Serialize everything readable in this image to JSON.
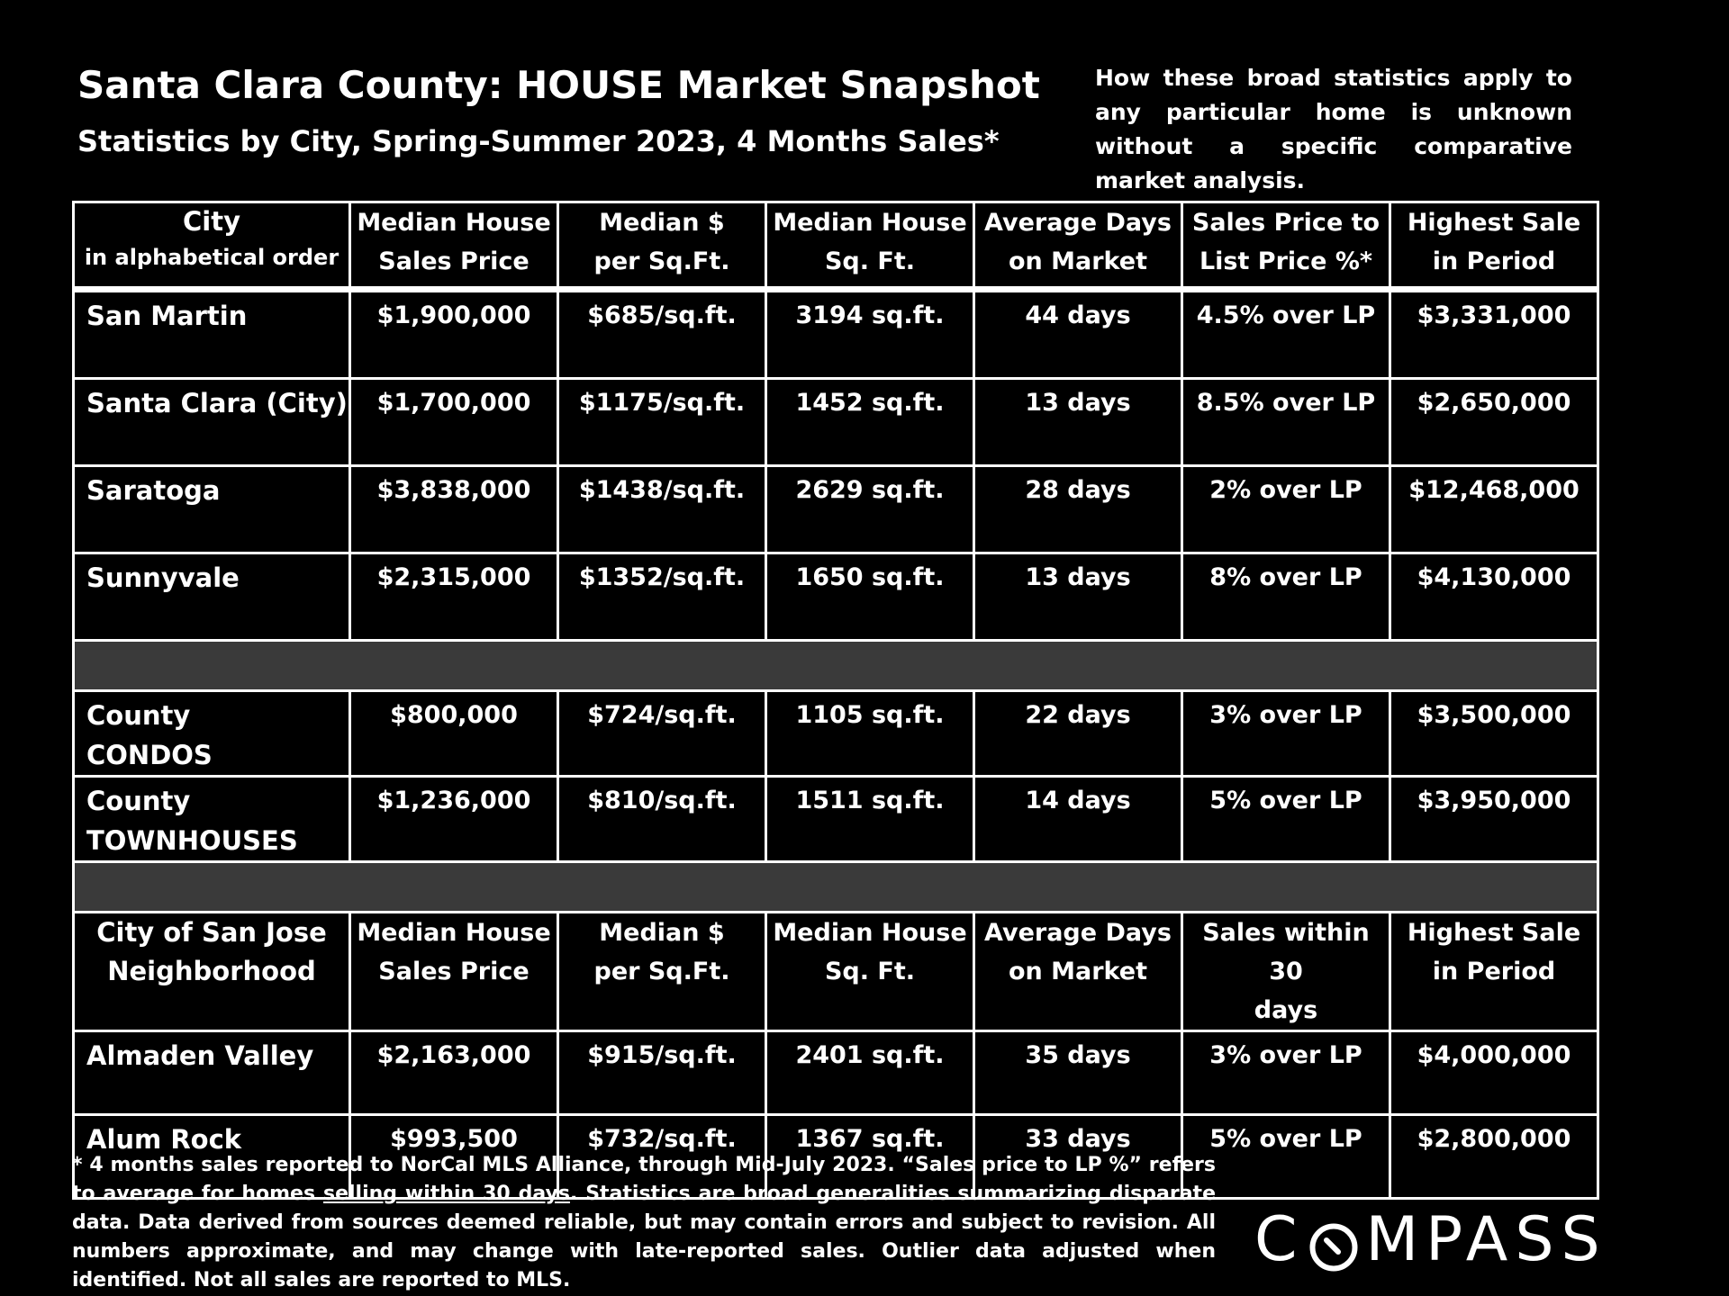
{
  "header": {
    "title": "Santa Clara County: HOUSE Market Snapshot",
    "subtitle": "Statistics by City, Spring-Summer 2023, 4 Months Sales*",
    "disclaimer": "How these broad statistics apply to any particular home is unknown without a specific comparative market analysis."
  },
  "table": {
    "columns": [
      {
        "line1": "City",
        "line2": "in alphabetical order"
      },
      {
        "line1": "Median House",
        "line2": "Sales Price"
      },
      {
        "line1": "Median $",
        "line2": "per Sq.Ft."
      },
      {
        "line1": "Median House",
        "line2": "Sq. Ft."
      },
      {
        "line1": "Average Days",
        "line2": "on Market"
      },
      {
        "line1": "Sales Price to",
        "line2": "List Price %*"
      },
      {
        "line1": "Highest Sale",
        "line2": "in Period"
      }
    ],
    "cities": [
      {
        "name": "San Martin",
        "price": "$1,900,000",
        "ppsf": "$685/sq.ft.",
        "sqft": "3194 sq.ft.",
        "days": "44 days",
        "ratio": "4.5% over LP",
        "high": "$3,331,000"
      },
      {
        "name": "Santa Clara (City)",
        "price": "$1,700,000",
        "ppsf": "$1175/sq.ft.",
        "sqft": "1452 sq.ft.",
        "days": "13 days",
        "ratio": "8.5% over LP",
        "high": "$2,650,000"
      },
      {
        "name": "Saratoga",
        "price": "$3,838,000",
        "ppsf": "$1438/sq.ft.",
        "sqft": "2629 sq.ft.",
        "days": "28 days",
        "ratio": "2% over LP",
        "high": "$12,468,000"
      },
      {
        "name": "Sunnyvale",
        "price": "$2,315,000",
        "ppsf": "$1352/sq.ft.",
        "sqft": "1650 sq.ft.",
        "days": "13 days",
        "ratio": "8% over LP",
        "high": "$4,130,000"
      }
    ],
    "county": [
      {
        "name_line1": "County",
        "name_line2": "CONDOS",
        "price": "$800,000",
        "ppsf": "$724/sq.ft.",
        "sqft": "1105 sq.ft.",
        "days": "22 days",
        "ratio": "3% over LP",
        "high": "$3,500,000"
      },
      {
        "name_line1": "County",
        "name_line2": "TOWNHOUSES",
        "price": "$1,236,000",
        "ppsf": "$810/sq.ft.",
        "sqft": "1511 sq.ft.",
        "days": "14 days",
        "ratio": "5% over LP",
        "high": "$3,950,000"
      }
    ],
    "sj_columns": [
      {
        "line1": "City of San Jose",
        "line2": "Neighborhood"
      },
      {
        "line1": "Median House",
        "line2": "Sales Price"
      },
      {
        "line1": "Median $",
        "line2": "per Sq.Ft."
      },
      {
        "line1": "Median House",
        "line2": "Sq. Ft."
      },
      {
        "line1": "Average Days",
        "line2": "on Market"
      },
      {
        "line1": "Sales within 30",
        "line2": "days"
      },
      {
        "line1": "Highest Sale",
        "line2": "in Period"
      }
    ],
    "neighborhoods": [
      {
        "name": "Almaden Valley",
        "price": "$2,163,000",
        "ppsf": "$915/sq.ft.",
        "sqft": "2401 sq.ft.",
        "days": "35 days",
        "ratio": "3% over LP",
        "high": "$4,000,000"
      },
      {
        "name": "Alum Rock",
        "price": "$993,500",
        "ppsf": "$732/sq.ft.",
        "sqft": "1367 sq.ft.",
        "days": "33 days",
        "ratio": "5% over LP",
        "high": "$2,800,000"
      }
    ]
  },
  "footnote": {
    "part1": "* 4 months sales reported to NorCal MLS Alliance, through Mid-July 2023. “Sales price to LP %” refers to average for homes ",
    "underlined": "selling within 30 days",
    "part2": ". Statistics are broad generalities summarizing disparate data. Data derived from sources deemed reliable, but may contain errors and subject to revision. All numbers approximate, and may change with late-reported sales. Outlier data adjusted when identified. Not all sales are reported to MLS."
  },
  "logo": {
    "text": "COMPASS",
    "before_o": "C",
    "after_o": "MPASS"
  }
}
